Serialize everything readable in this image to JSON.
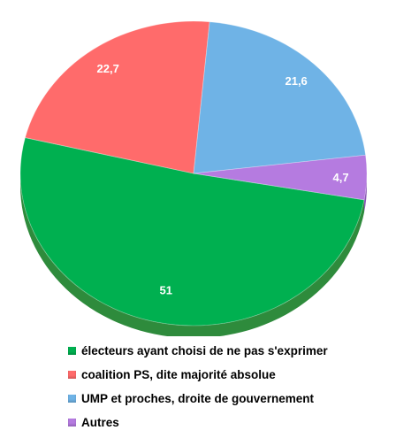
{
  "chart_data": {
    "type": "pie",
    "title": "",
    "start_angle_deg": 10,
    "slices": [
      {
        "label": "électeurs ayant choisi de ne pas s'exprimer",
        "value": 51,
        "value_label": "51",
        "color": "#00b050",
        "dark": "#2e8b3c"
      },
      {
        "label": "coalition PS, dite majorité absolue",
        "value": 22.7,
        "value_label": "22,7",
        "color": "#ff6b6b",
        "dark": "#c94848"
      },
      {
        "label": "UMP et proches, droite de gouvernement",
        "value": 21.6,
        "value_label": "21,6",
        "color": "#6fb3e6",
        "dark": "#4a8cc0"
      },
      {
        "label": "Autres",
        "value": 4.7,
        "value_label": "4,7",
        "color": "#b57be0",
        "dark": "#8a55b5"
      }
    ],
    "legend_position": "bottom"
  }
}
